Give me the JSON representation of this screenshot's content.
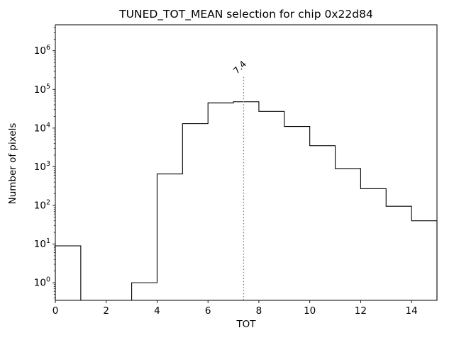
{
  "chart_data": {
    "type": "bar",
    "subtype": "step-histogram",
    "title": "TUNED_TOT_MEAN selection for chip 0x22d84",
    "xlabel": "TOT",
    "ylabel": "Number of pixels",
    "yscale": "log",
    "xlim": [
      0,
      15
    ],
    "ylim": [
      0.35,
      4700000
    ],
    "xticks": [
      0,
      2,
      4,
      6,
      8,
      10,
      12,
      14
    ],
    "ytick_exponents": [
      0,
      1,
      2,
      3,
      4,
      5,
      6
    ],
    "bin_edges": [
      0,
      1,
      2,
      3,
      4,
      5,
      6,
      7,
      8,
      9,
      10,
      11,
      12,
      13,
      14,
      15
    ],
    "counts": [
      9,
      0,
      0,
      1,
      650,
      13000,
      45000,
      48000,
      27000,
      11000,
      3500,
      900,
      270,
      95,
      40
    ],
    "line_color": "#000000",
    "grid": false,
    "legend": null,
    "annotation": {
      "x": 7.4,
      "label": "7.4",
      "color": "#808080",
      "line_style": "dotted"
    }
  }
}
